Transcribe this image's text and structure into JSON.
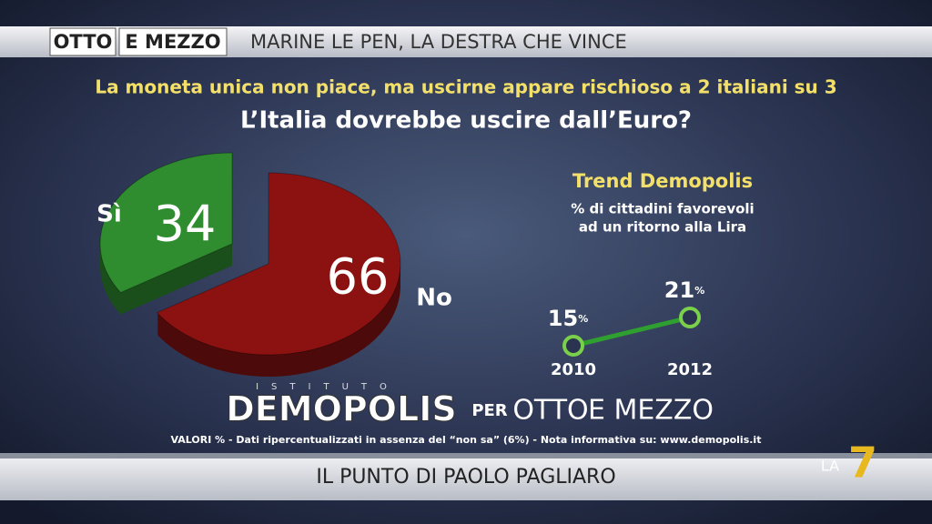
{
  "header": {
    "show_1": "OTTO",
    "show_2": "E MEZZO",
    "headline": "MARINE LE PEN, LA DESTRA CHE VINCE"
  },
  "chart_data": [
    {
      "type": "pie",
      "subtitle": "La moneta unica non piace, ma uscirne appare rischioso a 2 italiani su 3",
      "title": "L’Italia dovrebbe uscire dall’Euro?",
      "categories": [
        "Sì",
        "No"
      ],
      "values": [
        34,
        66
      ],
      "colors": [
        "#2f8d2f",
        "#8c1212"
      ]
    },
    {
      "type": "line",
      "title": "Trend Demopolis",
      "subtitle": [
        "% di cittadini favorevoli",
        "ad un ritorno alla Lira"
      ],
      "x": [
        2010,
        2012
      ],
      "values": [
        15,
        21
      ],
      "unit": "%",
      "color": "#2fa02f"
    }
  ],
  "footer": {
    "brand_institute": "ISTITUTO",
    "brand_name": "DEMOPOLIS",
    "brand_per": "PER",
    "brand_show_1": "OTTO",
    "brand_show_2": "E MEZZO",
    "note": "VALORI % - Dati ripercentualizzati in assenza del “non sa” (6%) - Nota informativa su: www.demopolis.it",
    "program": "IL PUNTO DI PAOLO PAGLIARO",
    "channel": "LA",
    "channel_num": "7"
  }
}
